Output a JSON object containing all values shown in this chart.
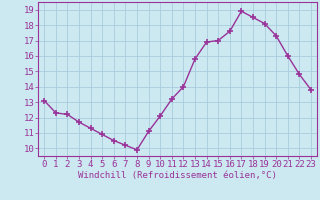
{
  "x": [
    0,
    1,
    2,
    3,
    4,
    5,
    6,
    7,
    8,
    9,
    10,
    11,
    12,
    13,
    14,
    15,
    16,
    17,
    18,
    19,
    20,
    21,
    22,
    23
  ],
  "y": [
    13.1,
    12.3,
    12.2,
    11.7,
    11.3,
    10.9,
    10.5,
    10.2,
    9.9,
    11.1,
    12.1,
    13.2,
    14.0,
    15.8,
    16.9,
    17.0,
    17.6,
    18.9,
    18.5,
    18.1,
    17.3,
    16.0,
    14.8,
    13.8
  ],
  "line_color": "#993399",
  "marker": "+",
  "marker_size": 4,
  "marker_linewidth": 1.2,
  "bg_color": "#cce8f0",
  "grid_color": "#aaccdd",
  "ylim": [
    9.5,
    19.5
  ],
  "xlim": [
    -0.5,
    23.5
  ],
  "yticks": [
    10,
    11,
    12,
    13,
    14,
    15,
    16,
    17,
    18,
    19
  ],
  "xticks": [
    0,
    1,
    2,
    3,
    4,
    5,
    6,
    7,
    8,
    9,
    10,
    11,
    12,
    13,
    14,
    15,
    16,
    17,
    18,
    19,
    20,
    21,
    22,
    23
  ],
  "tick_label_color": "#993399",
  "xlabel": "Windchill (Refroidissement éolien,°C)",
  "xlabel_color": "#993399",
  "xlabel_fontsize": 6.5,
  "tick_fontsize": 6.5,
  "linewidth": 1.0
}
